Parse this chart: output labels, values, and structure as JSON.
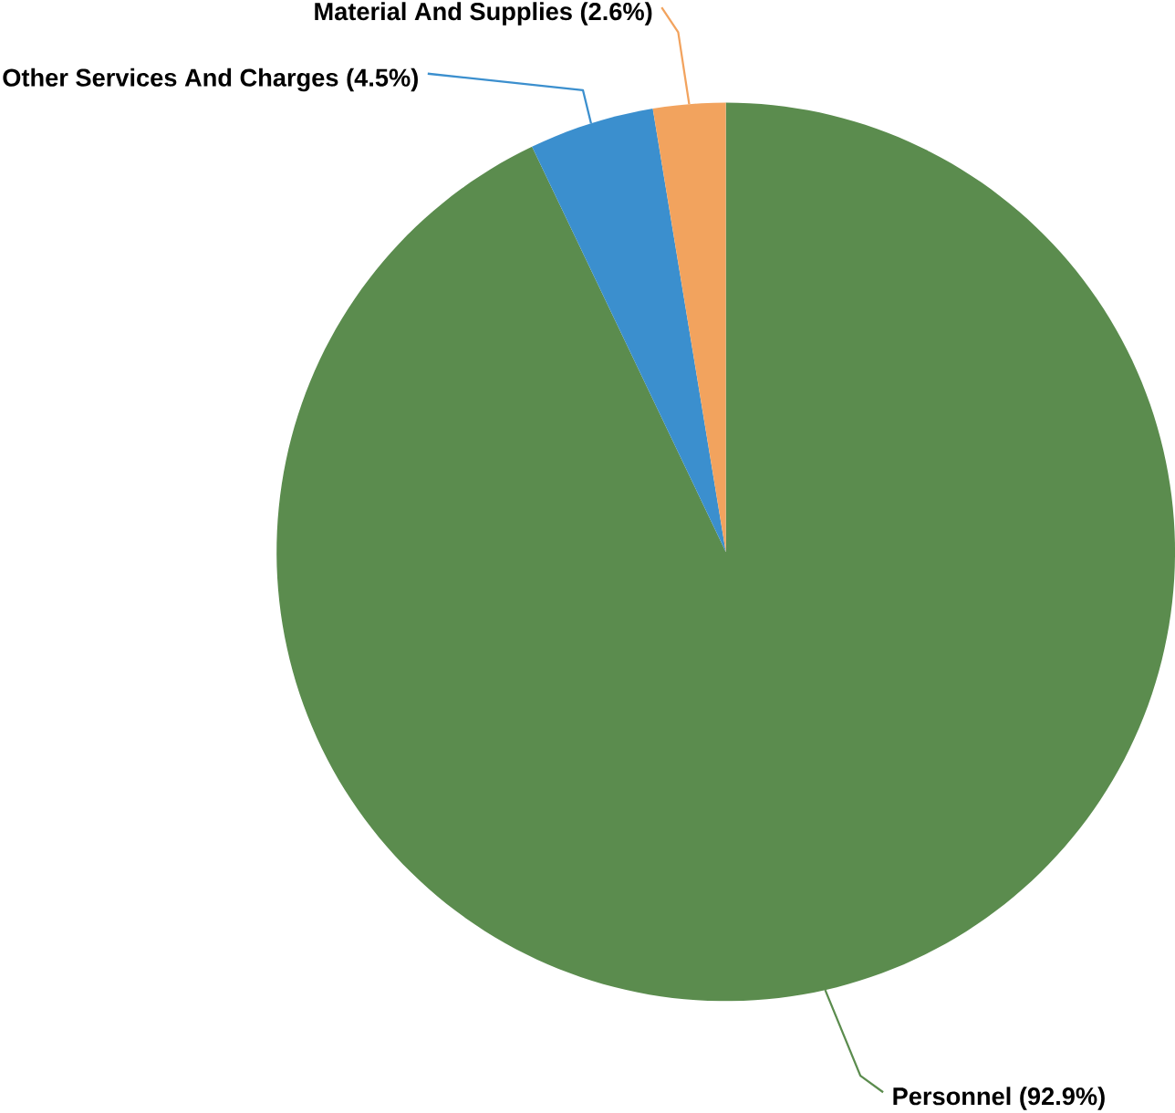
{
  "chart_data": {
    "type": "pie",
    "categories": [
      "Personnel",
      "Other Services And Charges",
      "Material And Supplies"
    ],
    "values": [
      92.9,
      4.5,
      2.6
    ],
    "colors": [
      "#5b8c4e",
      "#3b8fce",
      "#f2a35e"
    ],
    "value_labels": [
      "(92.9%)",
      "(4.5%)",
      "(2.6%)"
    ],
    "legend": false
  }
}
